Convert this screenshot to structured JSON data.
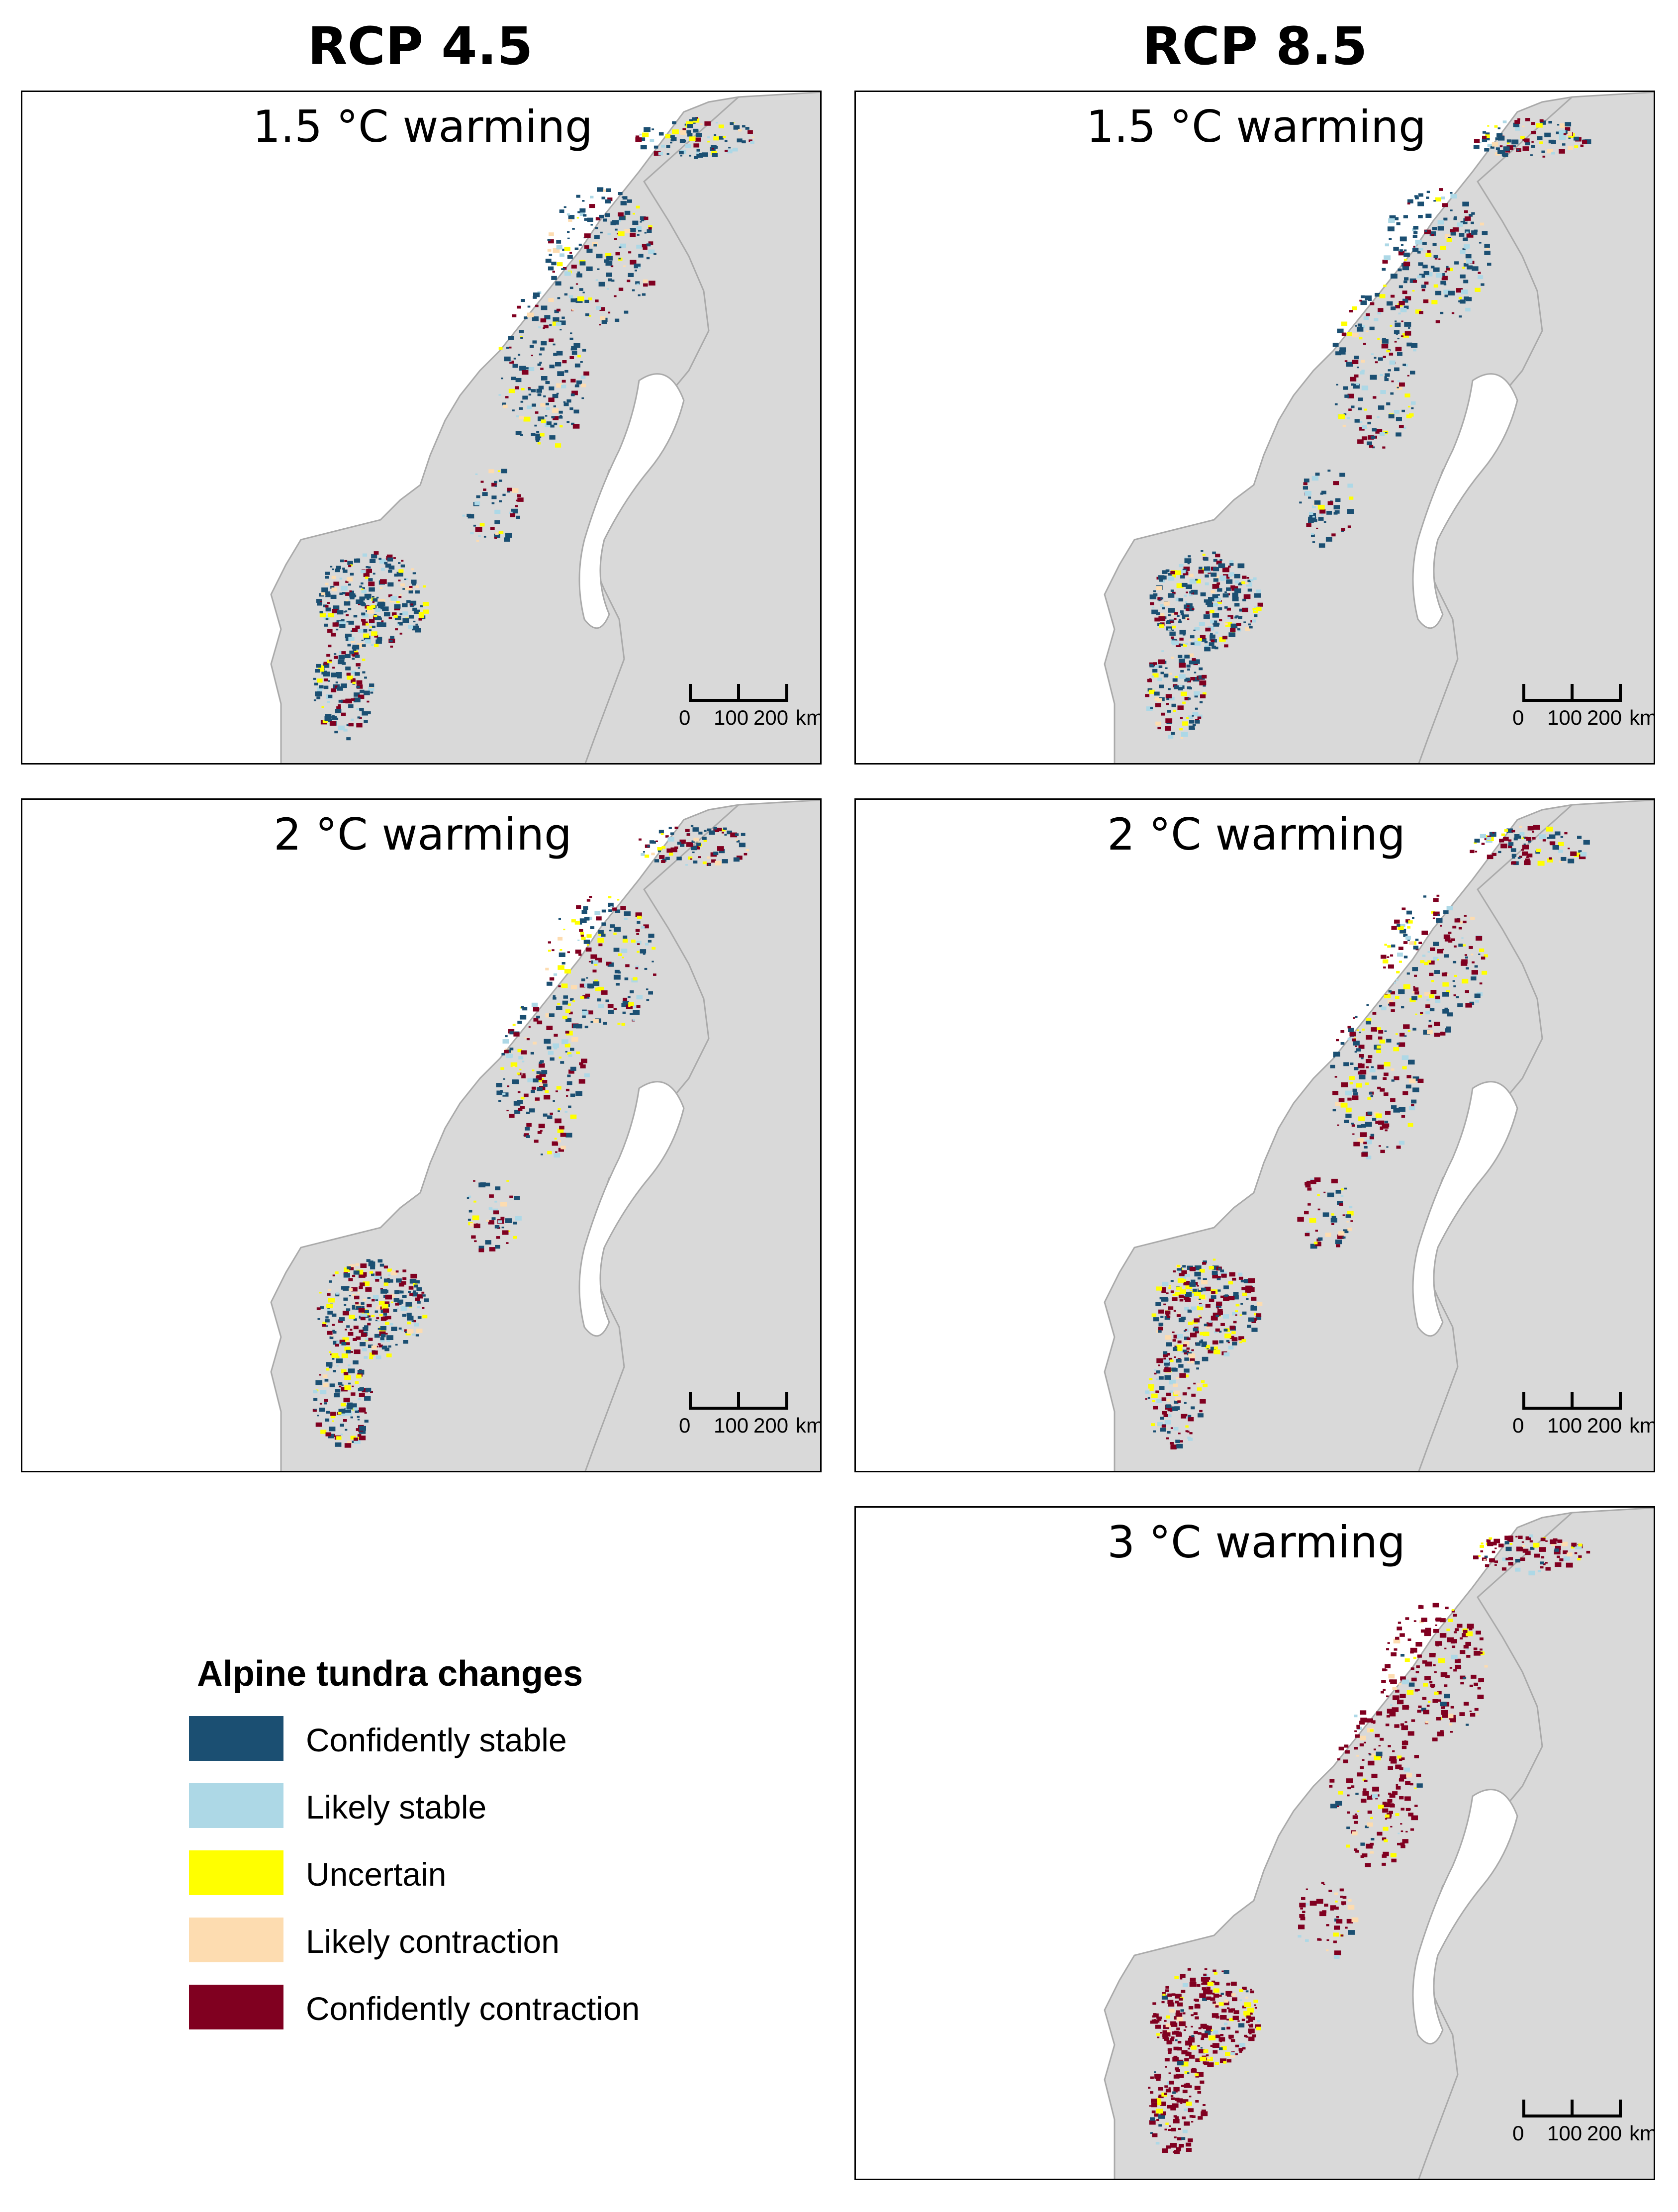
{
  "columns": {
    "left": {
      "title": "RCP 4.5"
    },
    "right": {
      "title": "RCP 8.5"
    }
  },
  "panels": [
    {
      "id": "rcp45-1p5",
      "title": "1.5 °C warming",
      "column": "left",
      "row": 0,
      "mix": {
        "stable": 0.55,
        "likely_stable": 0.1,
        "uncertain": 0.1,
        "likely_contraction": 0.05,
        "contraction": 0.2
      }
    },
    {
      "id": "rcp85-1p5",
      "title": "1.5 °C warming",
      "column": "right",
      "row": 0,
      "mix": {
        "stable": 0.5,
        "likely_stable": 0.1,
        "uncertain": 0.1,
        "likely_contraction": 0.05,
        "contraction": 0.25
      }
    },
    {
      "id": "rcp45-2",
      "title": "2 °C warming",
      "column": "left",
      "row": 1,
      "mix": {
        "stable": 0.4,
        "likely_stable": 0.1,
        "uncertain": 0.15,
        "likely_contraction": 0.05,
        "contraction": 0.3
      }
    },
    {
      "id": "rcp85-2",
      "title": "2 °C warming",
      "column": "right",
      "row": 1,
      "mix": {
        "stable": 0.3,
        "likely_stable": 0.1,
        "uncertain": 0.15,
        "likely_contraction": 0.05,
        "contraction": 0.4
      }
    },
    {
      "id": "rcp85-3",
      "title": "3 °C warming",
      "column": "right",
      "row": 2,
      "mix": {
        "stable": 0.05,
        "likely_stable": 0.05,
        "uncertain": 0.1,
        "likely_contraction": 0.05,
        "contraction": 0.75
      }
    }
  ],
  "scale_bar": {
    "labels": [
      "0",
      "100",
      "200",
      "km"
    ]
  },
  "legend": {
    "title": "Alpine tundra changes",
    "items": [
      {
        "label": "Confidently stable",
        "color": "#1b4f72"
      },
      {
        "label": "Likely stable",
        "color": "#add8e6"
      },
      {
        "label": "Uncertain",
        "color": "#ffff00"
      },
      {
        "label": "Likely contraction",
        "color": "#fddcb0"
      },
      {
        "label": "Confidently contraction",
        "color": "#800020"
      }
    ]
  },
  "colors": {
    "land": "#d9d9d9",
    "land_border": "#aaaaaa",
    "water": "#ffffff"
  }
}
